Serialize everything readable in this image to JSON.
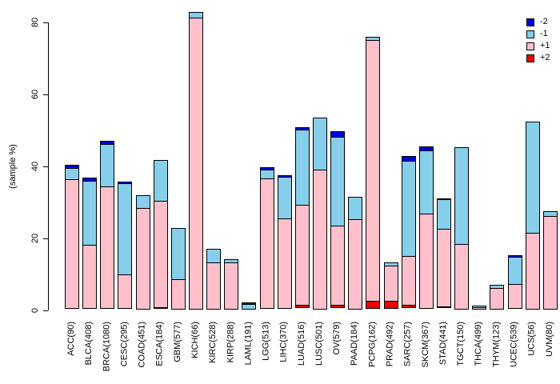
{
  "y_axis": {
    "title": "(sample %)",
    "ticks": [
      "0",
      "20",
      "40",
      "60",
      "80"
    ],
    "tick_values": [
      0,
      20,
      40,
      60,
      80
    ]
  },
  "legend": {
    "items": [
      {
        "label": "-2",
        "color": "#0000DD"
      },
      {
        "label": "-1",
        "color": "#87CEEB"
      },
      {
        "label": "+1",
        "color": "#FFC0CB"
      },
      {
        "label": "+2",
        "color": "#EE0000"
      }
    ]
  },
  "chart_data": {
    "type": "bar",
    "stacked": true,
    "title": "",
    "xlabel": "",
    "ylabel": "(sample %)",
    "ylim": [
      0,
      83
    ],
    "grid": false,
    "legend_position": "top-right",
    "categories": [
      "ACC(90)",
      "BLCA(408)",
      "BRCA(1080)",
      "CESC(295)",
      "COAD(451)",
      "ESCA(184)",
      "GBM(577)",
      "KICH(66)",
      "KIRC(528)",
      "KIRP(288)",
      "LAML(191)",
      "LGG(513)",
      "LIHC(370)",
      "LUAD(516)",
      "LUSC(501)",
      "OV(579)",
      "PAAD(184)",
      "PCPG(162)",
      "PRAD(492)",
      "SARC(257)",
      "SKCM(367)",
      "STAD(441)",
      "TGCT(150)",
      "THCA(499)",
      "THYM(123)",
      "UCEC(539)",
      "UCS(56)",
      "UVM(80)"
    ],
    "stack_order_bottom_to_top": [
      "+2",
      "+1",
      "-1",
      "-2"
    ],
    "series": [
      {
        "name": "+2",
        "color": "#EE0000",
        "values": [
          0,
          0,
          0,
          0,
          0,
          0.5,
          0,
          0,
          0,
          0,
          0,
          0,
          0,
          0.9,
          0,
          0.9,
          0,
          2.2,
          2.2,
          0.8,
          0,
          0.4,
          0,
          0,
          0,
          0,
          0,
          0
        ]
      },
      {
        "name": "+1",
        "color": "#FFC0CB",
        "values": [
          35.9,
          17.9,
          33.9,
          9.5,
          28.3,
          29.8,
          8.5,
          81,
          13.1,
          13,
          0,
          36.3,
          25.2,
          27.9,
          38.8,
          22.3,
          25.2,
          72.8,
          10.1,
          13.8,
          26.5,
          21.8,
          18.3,
          0.7,
          6.1,
          6.8,
          21.3,
          26
        ]
      },
      {
        "name": "-1",
        "color": "#87CEEB",
        "values": [
          3.4,
          17.9,
          12,
          25.5,
          3.6,
          11.6,
          14.3,
          1.8,
          4.1,
          1.3,
          1.5,
          2.6,
          11.6,
          21.2,
          14.7,
          24.8,
          6.3,
          1,
          1,
          26.7,
          17.8,
          8.4,
          27,
          0.7,
          1.1,
          7.8,
          31.1,
          1.5
        ]
      },
      {
        "name": "-2",
        "color": "#0000DD",
        "values": [
          1.2,
          1.1,
          1.2,
          0.7,
          0,
          0,
          0,
          0,
          0,
          0,
          0.8,
          0.9,
          0.7,
          0.8,
          0,
          1.8,
          0,
          0,
          0,
          1.5,
          1.2,
          0.5,
          0,
          0,
          0,
          0.8,
          0,
          0
        ]
      }
    ]
  },
  "layout_note": ""
}
